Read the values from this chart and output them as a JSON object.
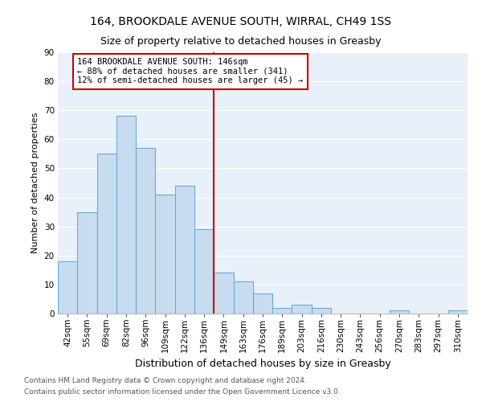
{
  "title1": "164, BROOKDALE AVENUE SOUTH, WIRRAL, CH49 1SS",
  "title2": "Size of property relative to detached houses in Greasby",
  "xlabel": "Distribution of detached houses by size in Greasby",
  "ylabel": "Number of detached properties",
  "footnote1": "Contains HM Land Registry data © Crown copyright and database right 2024.",
  "footnote2": "Contains public sector information licensed under the Open Government Licence v3.0.",
  "categories": [
    "42sqm",
    "55sqm",
    "69sqm",
    "82sqm",
    "96sqm",
    "109sqm",
    "122sqm",
    "136sqm",
    "149sqm",
    "163sqm",
    "176sqm",
    "189sqm",
    "203sqm",
    "216sqm",
    "230sqm",
    "243sqm",
    "256sqm",
    "270sqm",
    "283sqm",
    "297sqm",
    "310sqm"
  ],
  "values": [
    18,
    35,
    55,
    68,
    57,
    41,
    44,
    29,
    14,
    11,
    7,
    2,
    3,
    2,
    0,
    0,
    0,
    1,
    0,
    0,
    1
  ],
  "bar_color": "#c8dcf0",
  "bar_edge_color": "#6aaad4",
  "vline_index": 8,
  "property_label": "164 BROOKDALE AVENUE SOUTH: 146sqm",
  "annotation_line1": "← 88% of detached houses are smaller (341)",
  "annotation_line2": "12% of semi-detached houses are larger (45) →",
  "ylim": [
    0,
    90
  ],
  "yticks": [
    0,
    10,
    20,
    30,
    40,
    50,
    60,
    70,
    80,
    90
  ],
  "background_color": "#ffffff",
  "plot_bg_color": "#e8f0fa",
  "grid_color": "#ffffff",
  "annotation_box_color": "#ffffff",
  "annotation_box_edge": "#cc0000",
  "vline_color": "#cc0000",
  "title1_fontsize": 10,
  "title2_fontsize": 9,
  "xlabel_fontsize": 9,
  "ylabel_fontsize": 8,
  "tick_fontsize": 7.5,
  "footnote_fontsize": 6.5
}
